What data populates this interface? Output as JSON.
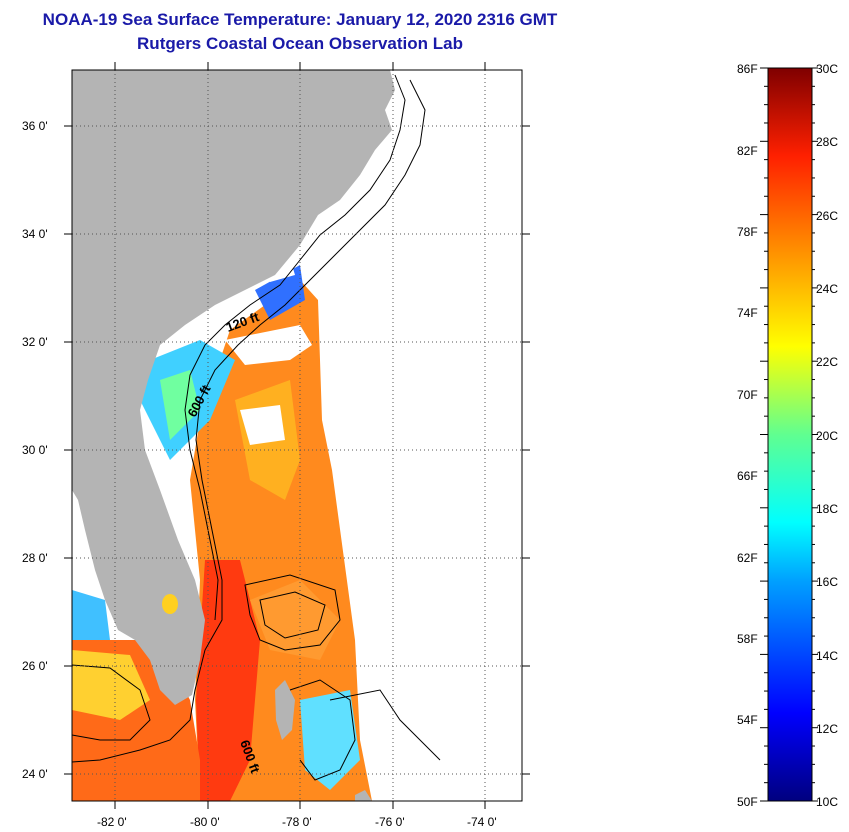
{
  "header": {
    "title": "NOAA-19 Sea Surface Temperature:  January 12, 2020 2316 GMT",
    "subtitle": "Rutgers Coastal Ocean Observation Lab"
  },
  "map": {
    "lat_ticks": [
      "36 0'",
      "34 0'",
      "32 0'",
      "30 0'",
      "28 0'",
      "26 0'",
      "24 0'"
    ],
    "lon_ticks": [
      "-82 0'",
      "-80 0'",
      "-78 0'",
      "-76 0'",
      "-74 0'"
    ],
    "contour_labels": [
      "120 ft",
      "600 ft",
      "600 ft"
    ],
    "land_color": "#b4b4b4",
    "cloud_color": "#ffffff"
  },
  "colorbar": {
    "fahrenheit": [
      "86F",
      "82F",
      "78F",
      "74F",
      "70F",
      "66F",
      "62F",
      "58F",
      "54F",
      "50F"
    ],
    "celsius": [
      "30C",
      "28C",
      "26C",
      "24C",
      "22C",
      "20C",
      "18C",
      "16C",
      "14C",
      "12C",
      "10C"
    ]
  }
}
